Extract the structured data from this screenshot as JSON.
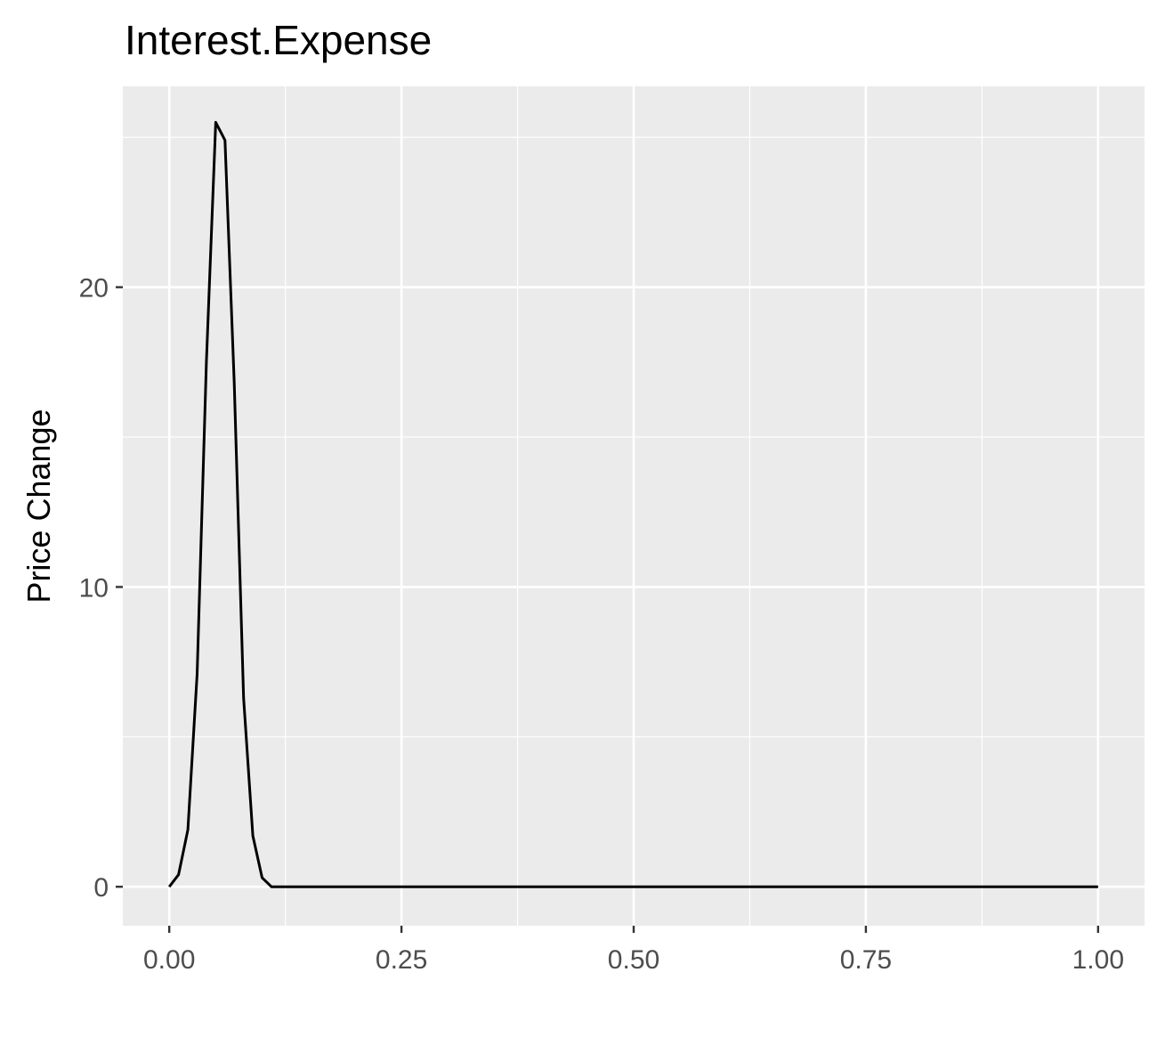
{
  "chart_data": {
    "type": "line",
    "title": "Interest.Expense",
    "xlabel": "",
    "ylabel": "Price Change",
    "xlim": [
      -0.05,
      1.05
    ],
    "ylim": [
      -1.3,
      26.7
    ],
    "x_ticks": [
      0.0,
      0.25,
      0.5,
      0.75,
      1.0
    ],
    "x_tick_labels": [
      "0.00",
      "0.25",
      "0.50",
      "0.75",
      "1.00"
    ],
    "y_ticks": [
      0,
      10,
      20
    ],
    "y_tick_labels": [
      "0",
      "10",
      "20"
    ],
    "grid": true,
    "series": [
      {
        "x": [
          0.0,
          0.01,
          0.02,
          0.03,
          0.04,
          0.05,
          0.06,
          0.07,
          0.08,
          0.09,
          0.1,
          0.11,
          0.2,
          0.4,
          0.6,
          0.8,
          1.0
        ],
        "y": [
          0,
          0.4,
          1.9,
          7.1,
          17.5,
          25.5,
          24.9,
          16.8,
          6.3,
          1.7,
          0.3,
          0,
          0,
          0,
          0,
          0,
          0
        ],
        "color": "#000000"
      }
    ]
  },
  "colors": {
    "panel_background": "#ebebeb",
    "grid": "#ffffff",
    "line": "#000000"
  }
}
